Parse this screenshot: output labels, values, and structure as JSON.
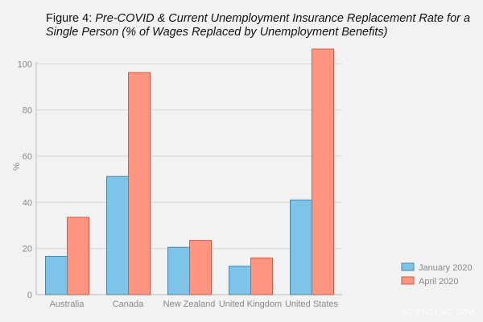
{
  "chart_data": {
    "type": "bar",
    "title_prefix": "Figure 4: ",
    "title": "Pre-COVID & Current Unemployment Insurance Replacement Rate for a Single Person (% of Wages Replaced by Unemployment Benefits)",
    "title_line1": "Pre-COVID & Current Unemployment Insurance Replacement Rate for a",
    "title_line2": "Single Person (% of Wages Replaced by Unemployment Benefits)",
    "xlabel": "",
    "ylabel": "%",
    "ylim": [
      0,
      110
    ],
    "yticks": [
      0,
      20,
      40,
      60,
      80,
      100
    ],
    "grid": true,
    "legend": "right",
    "categories": [
      "Australia",
      "Canada",
      "New Zealand",
      "United Kingdom",
      "United States"
    ],
    "series": [
      {
        "name": "January 2020",
        "color": "#7dc4e8",
        "stroke": "#4a86a8",
        "values": [
          16.6,
          51.2,
          20.5,
          12.3,
          41.0
        ]
      },
      {
        "name": "April 2020",
        "color": "#fd9580",
        "stroke": "#c9604d",
        "values": [
          33.5,
          96.2,
          23.5,
          15.9,
          106.4
        ]
      }
    ]
  },
  "watermark": "SCIENCEAQ.COM"
}
